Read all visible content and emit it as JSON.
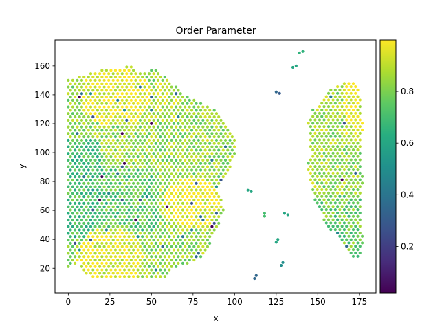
{
  "chart_data": {
    "type": "scatter",
    "title": "Order Parameter",
    "xlabel": "x",
    "ylabel": "y",
    "xlim": [
      -8,
      185
    ],
    "ylim": [
      3,
      178
    ],
    "xticks": [
      0,
      25,
      50,
      75,
      100,
      125,
      150,
      175
    ],
    "yticks": [
      20,
      40,
      60,
      80,
      100,
      120,
      140,
      160
    ],
    "colormap": "viridis",
    "colorbar": {
      "range": [
        0.02,
        1.0
      ],
      "ticks": [
        0.2,
        0.4,
        0.6,
        0.8
      ],
      "tick_labels": [
        "0.2",
        "0.4",
        "0.6",
        "0.8"
      ]
    },
    "regions": [
      {
        "name": "left cluster",
        "x_range": [
          0,
          102
        ],
        "y_range": [
          11,
          160
        ],
        "typical_order": 0.85
      },
      {
        "name": "right cluster",
        "x_range": [
          143,
          177
        ],
        "y_range": [
          20,
          153
        ],
        "typical_order": 0.82
      }
    ],
    "isolated_points": [
      {
        "x": 125,
        "y": 142,
        "value": 0.35
      },
      {
        "x": 127,
        "y": 141,
        "value": 0.3
      },
      {
        "x": 135,
        "y": 159,
        "value": 0.6
      },
      {
        "x": 137,
        "y": 160,
        "value": 0.6
      },
      {
        "x": 139,
        "y": 169,
        "value": 0.65
      },
      {
        "x": 141,
        "y": 170,
        "value": 0.65
      },
      {
        "x": 108,
        "y": 74,
        "value": 0.6
      },
      {
        "x": 110,
        "y": 73,
        "value": 0.6
      },
      {
        "x": 118,
        "y": 58,
        "value": 0.7
      },
      {
        "x": 118,
        "y": 56,
        "value": 0.7
      },
      {
        "x": 130,
        "y": 58,
        "value": 0.6
      },
      {
        "x": 132,
        "y": 57,
        "value": 0.6
      },
      {
        "x": 125,
        "y": 38,
        "value": 0.6
      },
      {
        "x": 126,
        "y": 40,
        "value": 0.6
      },
      {
        "x": 128,
        "y": 22,
        "value": 0.5
      },
      {
        "x": 129,
        "y": 24,
        "value": 0.5
      },
      {
        "x": 112,
        "y": 13,
        "value": 0.35
      },
      {
        "x": 113,
        "y": 15,
        "value": 0.35
      }
    ]
  }
}
